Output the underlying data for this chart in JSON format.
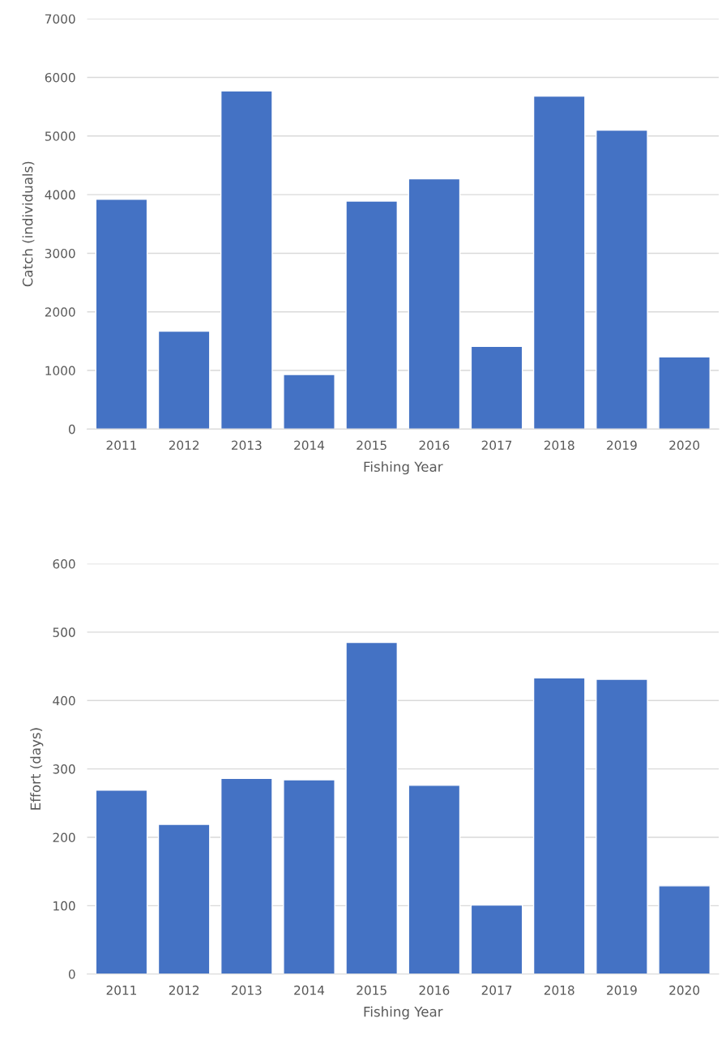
{
  "chart_data": [
    {
      "type": "bar",
      "xlabel": "Fishing Year",
      "ylabel": "Catch (individuals)",
      "categories": [
        "2011",
        "2012",
        "2013",
        "2014",
        "2015",
        "2016",
        "2017",
        "2018",
        "2019",
        "2020"
      ],
      "color": "#4472c4",
      "values": [
        3920,
        1670,
        5770,
        930,
        3890,
        4270,
        1410,
        5680,
        5100,
        1230
      ],
      "ylim": [
        0,
        7000
      ],
      "yticks": [
        0,
        1000,
        2000,
        3000,
        4000,
        5000,
        6000,
        7000
      ],
      "grid": "y",
      "legend": false
    },
    {
      "type": "bar",
      "xlabel": "Fishing Year",
      "ylabel": "Effort (days)",
      "categories": [
        "2011",
        "2012",
        "2013",
        "2014",
        "2015",
        "2016",
        "2017",
        "2018",
        "2019",
        "2020"
      ],
      "color": "#4472c4",
      "values": [
        269,
        219,
        286,
        284,
        485,
        276,
        101,
        433,
        431,
        129
      ],
      "ylim": [
        0,
        600
      ],
      "yticks": [
        0,
        100,
        200,
        300,
        400,
        500,
        600
      ],
      "grid": "y",
      "legend": false
    }
  ]
}
